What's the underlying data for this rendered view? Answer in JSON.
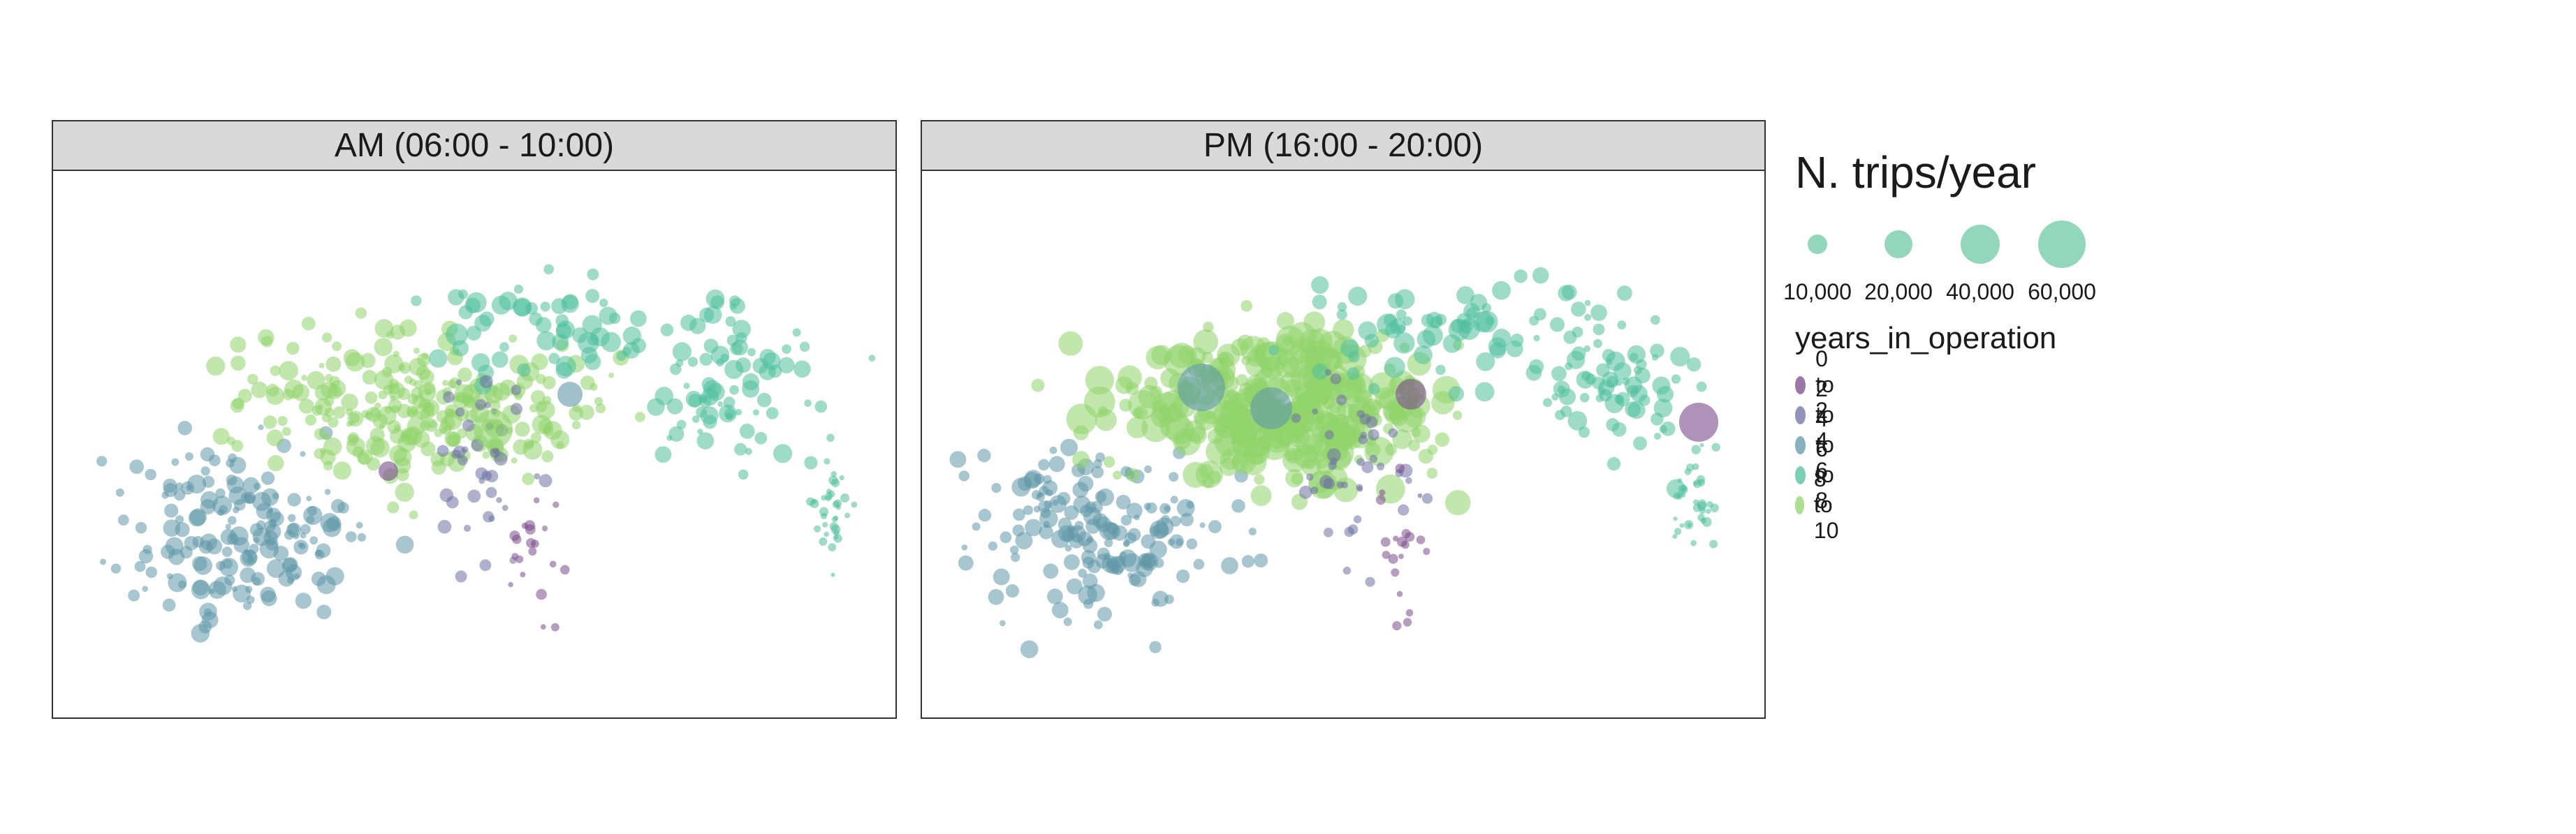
{
  "chart_data": {
    "type": "scatter",
    "facets": [
      {
        "label": "AM (06:00 - 10:00)"
      },
      {
        "label": "PM (16:00 - 20:00)"
      }
    ],
    "size_legend": {
      "title": "N. trips/year",
      "breaks": [
        10000,
        20000,
        40000,
        60000
      ],
      "labels": [
        "10,000",
        "20,000",
        "40,000",
        "60,000"
      ],
      "color": "#7fd0b0"
    },
    "color_legend": {
      "title": "years_in_operation",
      "categories": [
        "0 to 2",
        "2 to 4",
        "4 to 6",
        "6 to 8",
        "8 to 10"
      ],
      "colors": [
        "#7a4a8a",
        "#6b6fa3",
        "#5f97a8",
        "#4fbf9b",
        "#8fd46a"
      ]
    },
    "grid": false,
    "axes": "none"
  }
}
